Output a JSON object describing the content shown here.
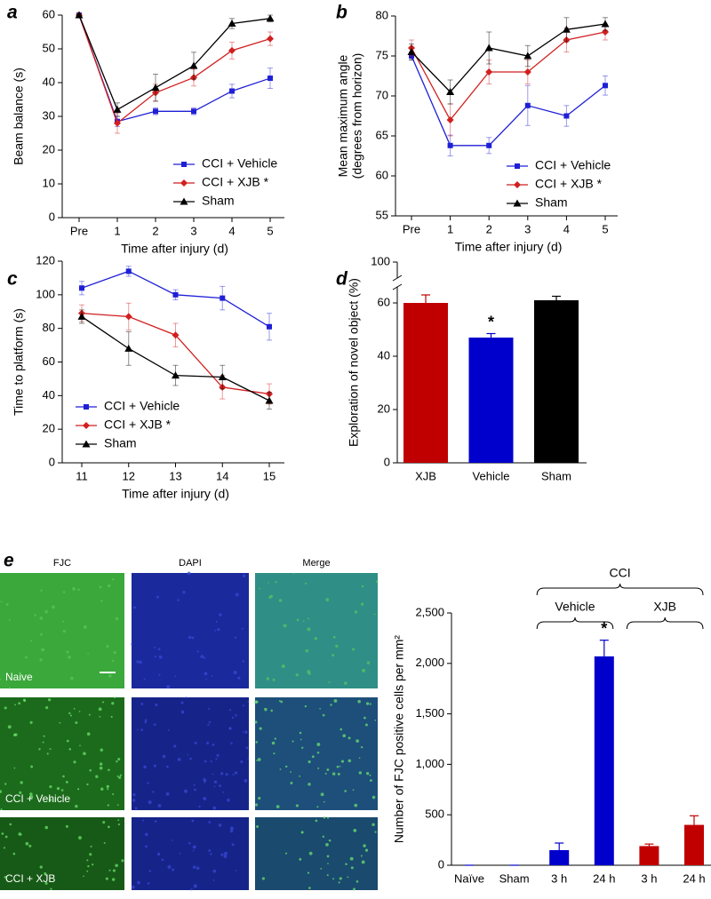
{
  "chart_data": [
    {
      "type": "line",
      "panel_label": "a",
      "xlabel": "Time after injury (d)",
      "ylabel": "Beam balance (s)",
      "categories": [
        "Pre",
        "1",
        "2",
        "3",
        "4",
        "5"
      ],
      "ylim": [
        0,
        60
      ],
      "yticks": [
        0,
        10,
        20,
        30,
        40,
        50,
        60
      ],
      "legend": "lower right",
      "series": [
        {
          "name": "CCI + Vehicle",
          "color": "#1f1fd6",
          "marker": "square",
          "values": [
            60,
            28.5,
            31.5,
            31.5,
            37.5,
            41.3
          ],
          "errors": [
            0,
            1.5,
            1,
            1,
            2,
            3
          ]
        },
        {
          "name": "CCI + XJB *",
          "color": "#d21f1f",
          "marker": "diamond",
          "values": [
            60,
            28,
            37,
            41.5,
            49.5,
            53
          ],
          "errors": [
            0,
            3,
            2.5,
            2.5,
            2.5,
            2
          ]
        },
        {
          "name": "Sham",
          "color": "#000000",
          "marker": "triangle",
          "values": [
            60,
            32,
            38.5,
            45,
            57.5,
            59
          ],
          "errors": [
            0,
            2,
            4,
            4,
            1.5,
            1
          ]
        }
      ]
    },
    {
      "type": "line",
      "panel_label": "b",
      "xlabel": "Time after injury (d)",
      "ylabel": [
        "Mean maximum angle",
        "(degrees from horizon)"
      ],
      "categories": [
        "Pre",
        "1",
        "2",
        "3",
        "4",
        "5"
      ],
      "ylim": [
        55,
        80
      ],
      "yticks": [
        55,
        60,
        65,
        70,
        75,
        80
      ],
      "legend": "lower right",
      "series": [
        {
          "name": "CCI + Vehicle",
          "color": "#1f1fd6",
          "marker": "square",
          "values": [
            75,
            63.8,
            63.8,
            68.8,
            67.5,
            71.3
          ],
          "errors": [
            0.5,
            1.3,
            1,
            2.5,
            1.3,
            1.2
          ]
        },
        {
          "name": "CCI + XJB *",
          "color": "#d21f1f",
          "marker": "diamond",
          "values": [
            76,
            67,
            73,
            73,
            77,
            78
          ],
          "errors": [
            1,
            2,
            1.5,
            1.5,
            1.5,
            1
          ]
        },
        {
          "name": "Sham",
          "color": "#000000",
          "marker": "triangle",
          "values": [
            75.5,
            70.5,
            76,
            75,
            78.3,
            79
          ],
          "errors": [
            1,
            1.5,
            2,
            1.3,
            1.5,
            0.8
          ]
        }
      ]
    },
    {
      "type": "line",
      "panel_label": "c",
      "xlabel": "Time after injury (d)",
      "ylabel": "Time to platform (s)",
      "categories": [
        "11",
        "12",
        "13",
        "14",
        "15"
      ],
      "ylim": [
        0,
        120
      ],
      "yticks": [
        0,
        20,
        40,
        60,
        80,
        100,
        120
      ],
      "legend": "lower left",
      "series": [
        {
          "name": "CCI + Vehicle",
          "color": "#1f1fd6",
          "marker": "square",
          "values": [
            104,
            114,
            100,
            98,
            81
          ],
          "errors": [
            4,
            3,
            3,
            7,
            8
          ]
        },
        {
          "name": "CCI + XJB *",
          "color": "#d21f1f",
          "marker": "diamond",
          "values": [
            89,
            87,
            76,
            45,
            41
          ],
          "errors": [
            5,
            8,
            7,
            7,
            6
          ]
        },
        {
          "name": "Sham",
          "color": "#000000",
          "marker": "triangle",
          "values": [
            87,
            68,
            52,
            51,
            37
          ],
          "errors": [
            4,
            10,
            6,
            7,
            5
          ]
        }
      ]
    },
    {
      "type": "bar",
      "panel_label": "d",
      "ylabel": "Exploration of novel object (%)",
      "categories": [
        "XJB",
        "Vehicle",
        "Sham"
      ],
      "values": [
        60,
        47,
        61
      ],
      "errors": [
        3,
        1.5,
        1.5
      ],
      "colors": [
        "#c00000",
        "#0000cc",
        "#000000"
      ],
      "ylim": [
        0,
        100
      ],
      "yticks": [
        0,
        20,
        40,
        60,
        100
      ],
      "axis_break": true,
      "annotations": [
        {
          "text": "*",
          "index": 1
        }
      ]
    },
    {
      "type": "bar",
      "ylabel": "Number of FJC positive cells per mm²",
      "categories": [
        "Naïve",
        "Sham",
        "3 h",
        "24 h",
        "3 h",
        "24 h"
      ],
      "values": [
        0,
        0,
        150,
        2070,
        190,
        400
      ],
      "errors": [
        0,
        0,
        70,
        160,
        20,
        90
      ],
      "colors": [
        "#0000cc",
        "#0000cc",
        "#0000cc",
        "#0000cc",
        "#c00000",
        "#c00000"
      ],
      "ylim": [
        0,
        2500
      ],
      "yticks": [
        0,
        500,
        {
          "value": 1000,
          "label": "1,000"
        },
        {
          "value": 1500,
          "label": "1,500"
        },
        {
          "value": 2000,
          "label": "2,000"
        },
        {
          "value": 2500,
          "label": "2,500"
        }
      ],
      "annotations": [
        {
          "text": "*",
          "index": 3
        }
      ],
      "groups": [
        {
          "label": "CCI",
          "from": 2,
          "to": 5
        },
        {
          "label": "Vehicle",
          "from": 2,
          "to": 3
        },
        {
          "label": "XJB",
          "from": 4,
          "to": 5
        }
      ]
    }
  ],
  "micrographs": {
    "panel_label": "e",
    "columns": [
      "FJC",
      "DAPI",
      "Merge"
    ],
    "rows": [
      "Naive",
      "CCI + Vehicle",
      "CCI + XJB"
    ]
  }
}
